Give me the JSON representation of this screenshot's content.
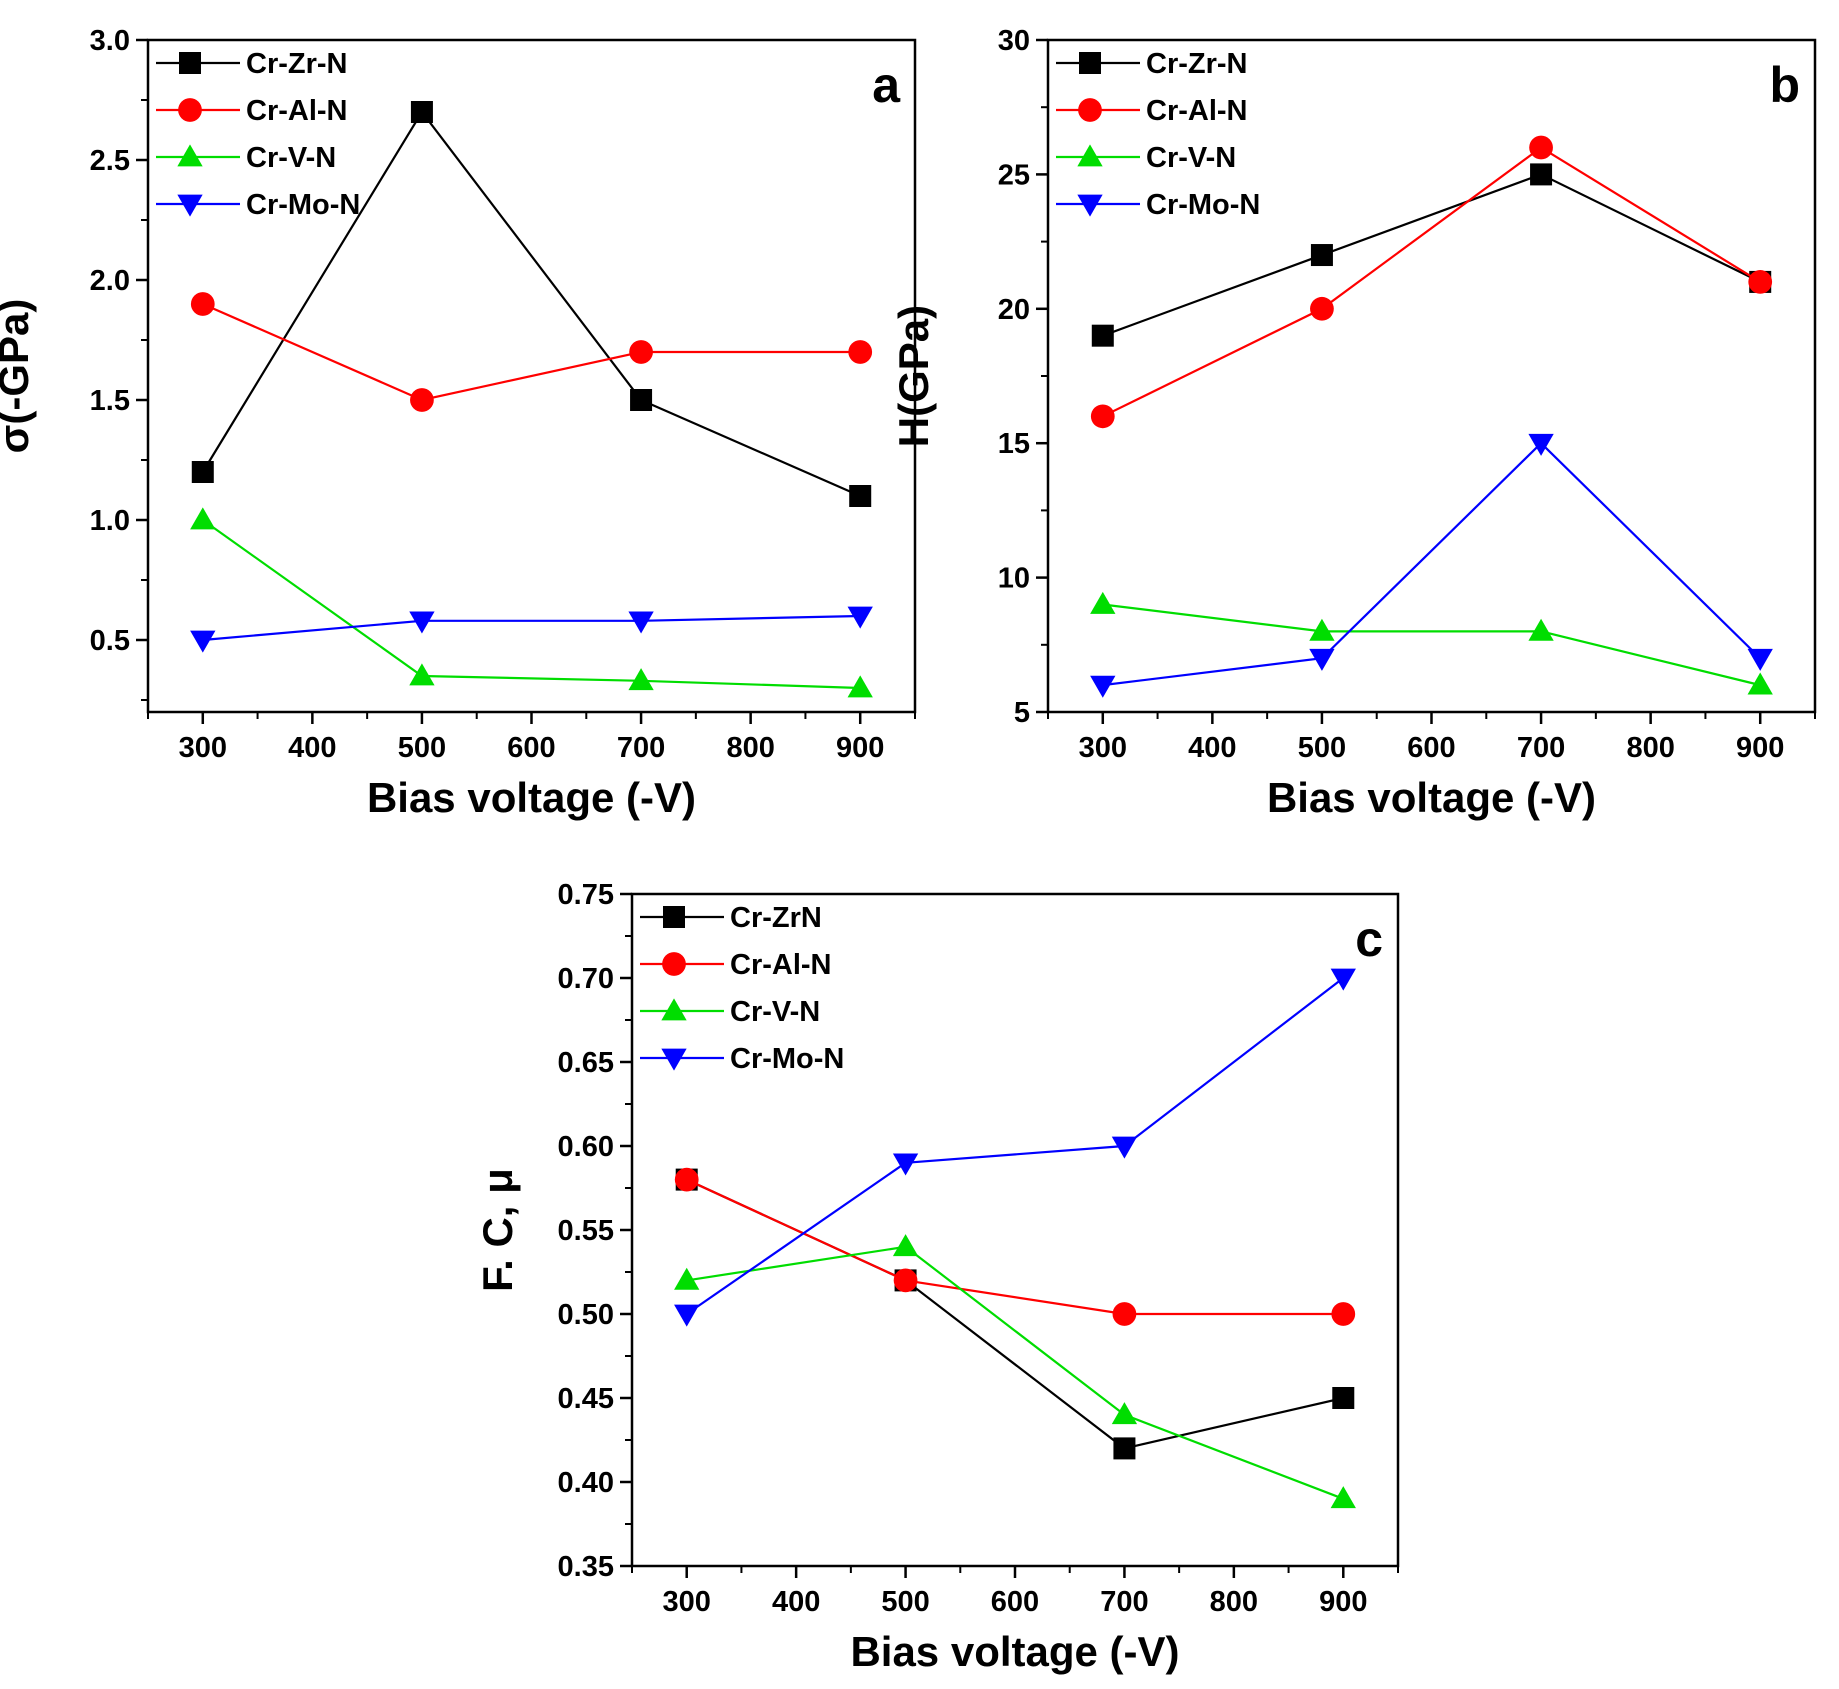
{
  "chart_data": [
    {
      "type": "line",
      "panel_label": "a",
      "xlabel": "Bias voltage (-V)",
      "ylabel": "σ(-GPa)",
      "x": [
        300,
        500,
        700,
        900
      ],
      "xlim": [
        250,
        950
      ],
      "xticks": [
        300,
        400,
        500,
        600,
        700,
        800,
        900
      ],
      "ylim": [
        0.2,
        3.0
      ],
      "yticks": [
        0.5,
        1.0,
        1.5,
        2.0,
        2.5,
        3.0
      ],
      "ydecimals": 1,
      "legend_position": "top-left",
      "series": [
        {
          "name": "Cr-Zr-N",
          "color": "#000000",
          "marker": "square",
          "values": [
            1.2,
            2.7,
            1.5,
            1.1
          ]
        },
        {
          "name": "Cr-Al-N",
          "color": "#ff0000",
          "marker": "circle",
          "values": [
            1.9,
            1.5,
            1.7,
            1.7
          ]
        },
        {
          "name": "Cr-V-N",
          "color": "#00dd00",
          "marker": "triangle-up",
          "values": [
            1.0,
            0.35,
            0.33,
            0.3
          ]
        },
        {
          "name": "Cr-Mo-N",
          "color": "#0000ff",
          "marker": "triangle-down",
          "values": [
            0.5,
            0.58,
            0.58,
            0.6
          ]
        }
      ]
    },
    {
      "type": "line",
      "panel_label": "b",
      "xlabel": "Bias voltage (-V)",
      "ylabel": "H(GPa)",
      "x": [
        300,
        500,
        700,
        900
      ],
      "xlim": [
        250,
        950
      ],
      "xticks": [
        300,
        400,
        500,
        600,
        700,
        800,
        900
      ],
      "ylim": [
        5,
        30
      ],
      "yticks": [
        5,
        10,
        15,
        20,
        25,
        30
      ],
      "ydecimals": 0,
      "legend_position": "top-left",
      "series": [
        {
          "name": "Cr-Zr-N",
          "color": "#000000",
          "marker": "square",
          "values": [
            19,
            22,
            25,
            21
          ]
        },
        {
          "name": "Cr-Al-N",
          "color": "#ff0000",
          "marker": "circle",
          "values": [
            16,
            20,
            26,
            21
          ]
        },
        {
          "name": "Cr-V-N",
          "color": "#00dd00",
          "marker": "triangle-up",
          "values": [
            9,
            8,
            8,
            6
          ]
        },
        {
          "name": "Cr-Mo-N",
          "color": "#0000ff",
          "marker": "triangle-down",
          "values": [
            6,
            7,
            15,
            7
          ]
        }
      ]
    },
    {
      "type": "line",
      "panel_label": "c",
      "xlabel": "Bias voltage (-V)",
      "ylabel": "F. C, μ",
      "x": [
        300,
        500,
        700,
        900
      ],
      "xlim": [
        250,
        950
      ],
      "xticks": [
        300,
        400,
        500,
        600,
        700,
        800,
        900
      ],
      "ylim": [
        0.35,
        0.75
      ],
      "yticks": [
        0.35,
        0.4,
        0.45,
        0.5,
        0.55,
        0.6,
        0.65,
        0.7,
        0.75
      ],
      "ydecimals": 2,
      "legend_position": "top-left",
      "series": [
        {
          "name": "Cr-ZrN",
          "color": "#000000",
          "marker": "square",
          "values": [
            0.58,
            0.52,
            0.42,
            0.45
          ]
        },
        {
          "name": "Cr-Al-N",
          "color": "#ff0000",
          "marker": "circle",
          "values": [
            0.58,
            0.52,
            0.5,
            0.5
          ]
        },
        {
          "name": "Cr-V-N",
          "color": "#00dd00",
          "marker": "triangle-up",
          "values": [
            0.52,
            0.54,
            0.44,
            0.39
          ]
        },
        {
          "name": "Cr-Mo-N",
          "color": "#0000ff",
          "marker": "triangle-down",
          "values": [
            0.5,
            0.59,
            0.6,
            0.7
          ]
        }
      ]
    }
  ]
}
